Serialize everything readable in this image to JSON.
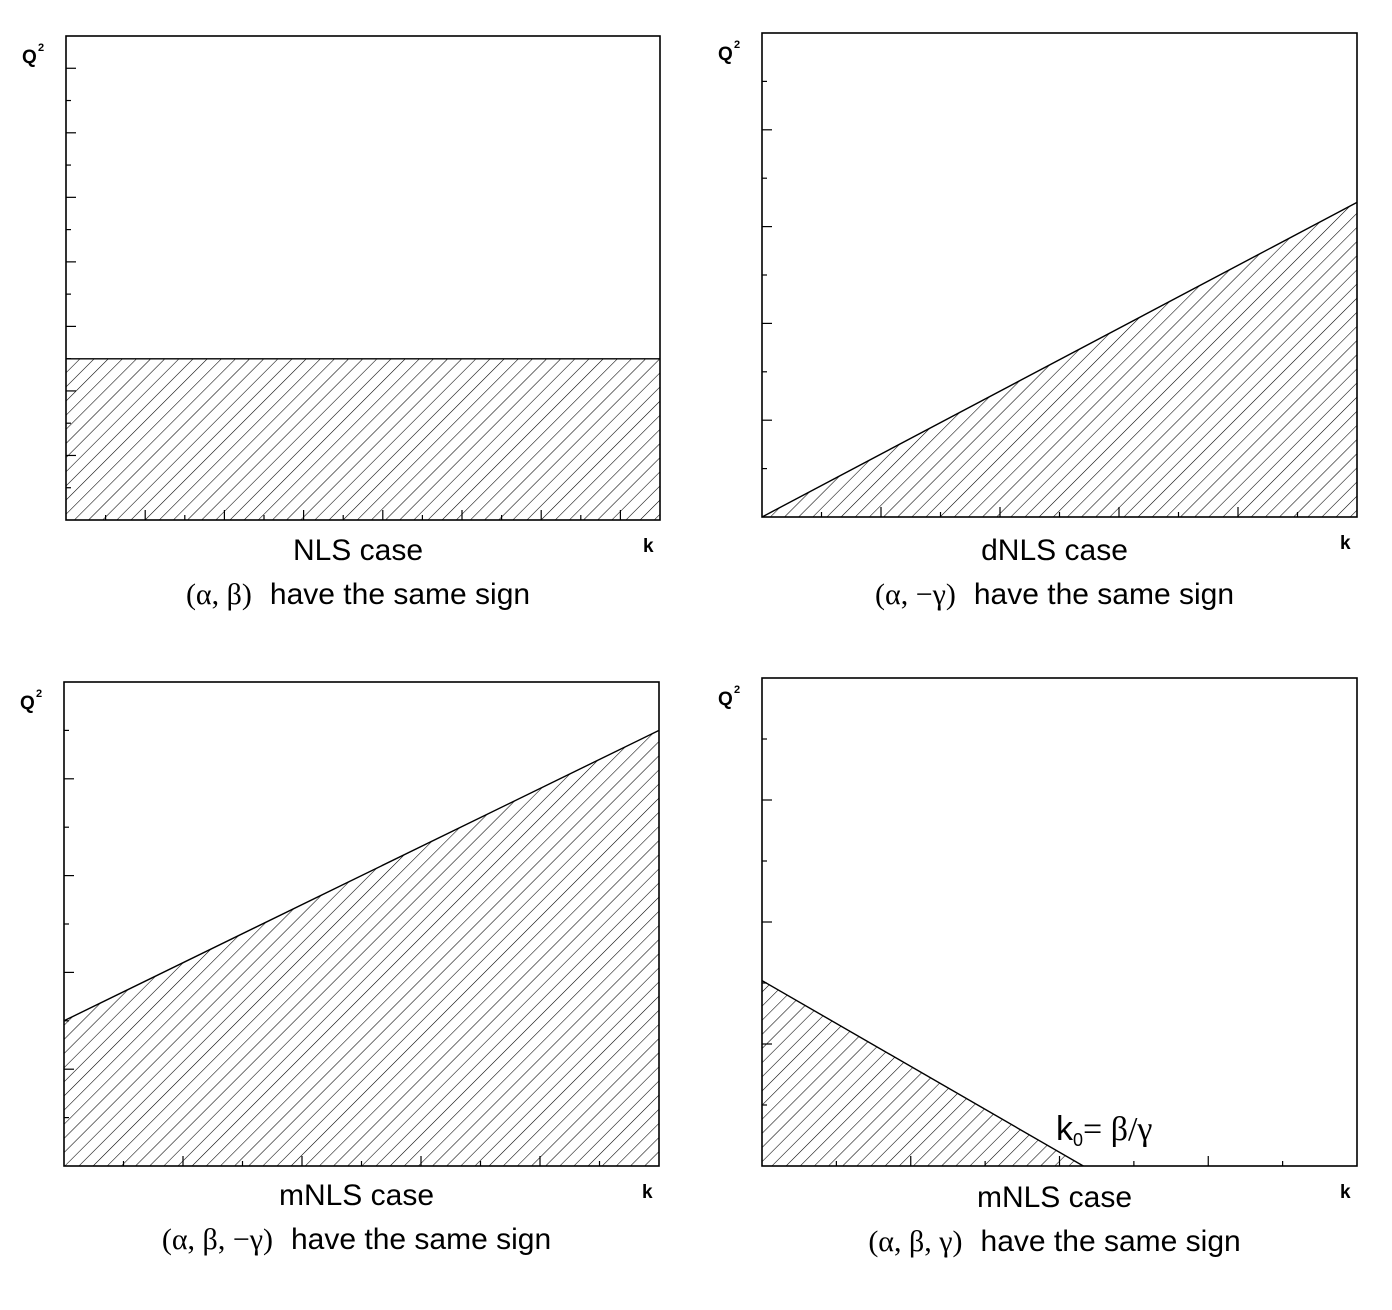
{
  "chart_data": [
    {
      "type": "area",
      "title": "NLS case",
      "subtitle_greek": "(α, β)",
      "subtitle_text": "have the same sign",
      "xlabel": "k",
      "ylabel": "Q",
      "ylabel_sup": "2",
      "region": "shaded below horizontal line",
      "boundary": {
        "x": [
          0,
          1
        ],
        "y": [
          0.333,
          0.333
        ]
      },
      "xlim": [
        0,
        1
      ],
      "ylim": [
        0,
        1
      ],
      "grid": false
    },
    {
      "type": "area",
      "title": "dNLS case",
      "subtitle_greek": "(α, −γ)",
      "subtitle_text": "have the same sign",
      "xlabel": "k",
      "ylabel": "Q",
      "ylabel_sup": "2",
      "region": "shaded below increasing line through origin",
      "boundary": {
        "x": [
          0,
          1
        ],
        "y": [
          0,
          0.65
        ]
      },
      "xlim": [
        0,
        1
      ],
      "ylim": [
        0,
        1
      ],
      "grid": false
    },
    {
      "type": "area",
      "title": "mNLS case",
      "subtitle_greek": "(α, β, −γ)",
      "subtitle_text": "have the same sign",
      "xlabel": "k",
      "ylabel": "Q",
      "ylabel_sup": "2",
      "region": "shaded below increasing line with positive intercept",
      "boundary": {
        "x": [
          0,
          1
        ],
        "y": [
          0.3,
          0.9
        ]
      },
      "xlim": [
        0,
        1
      ],
      "ylim": [
        0,
        1
      ],
      "grid": false
    },
    {
      "type": "area",
      "title": "mNLS case",
      "subtitle_greek": "(α, β, γ)",
      "subtitle_text": "have the same sign",
      "xlabel": "k",
      "ylabel": "Q",
      "ylabel_sup": "2",
      "region": "shaded below decreasing line reaching zero at k0",
      "boundary": {
        "x": [
          0,
          0.54
        ],
        "y": [
          0.38,
          0
        ]
      },
      "annotation": {
        "base": "k",
        "sub": "0",
        "rest": "= β/γ"
      },
      "xlim": [
        0,
        1
      ],
      "ylim": [
        0,
        1
      ],
      "grid": false
    }
  ]
}
